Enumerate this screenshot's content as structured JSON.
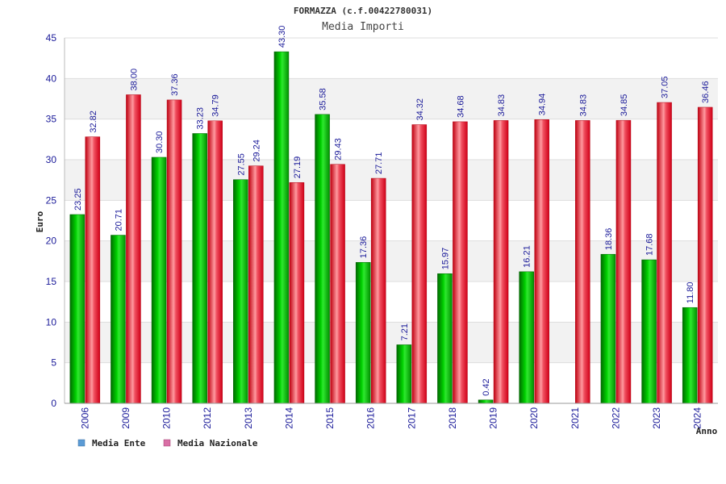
{
  "chart_data": {
    "type": "bar",
    "title": "FORMAZZA (c.f.00422780031)",
    "subtitle": "Media Importi",
    "ylabel": "Euro",
    "xlabel": "Anno",
    "ylim": [
      0,
      45
    ],
    "yticks": [
      "0",
      "5",
      "10",
      "15",
      "20",
      "25",
      "30",
      "35",
      "40",
      "45"
    ],
    "categories": [
      "2006",
      "2009",
      "2010",
      "2012",
      "2013",
      "2014",
      "2015",
      "2016",
      "2017",
      "2018",
      "2019",
      "2020",
      "2021",
      "2022",
      "2023",
      "2024"
    ],
    "series": [
      {
        "name": "Media Ente",
        "color": "#00b000",
        "values": [
          23.25,
          20.71,
          30.3,
          33.23,
          27.55,
          43.3,
          35.58,
          17.36,
          7.21,
          15.97,
          0.42,
          16.21,
          null,
          18.36,
          17.68,
          11.8
        ],
        "labels": [
          "23.25",
          "20.71",
          "30.30",
          "33.23",
          "27.55",
          "43.30",
          "35.58",
          "17.36",
          "7.21",
          "15.97",
          "0.42",
          "16.21",
          "",
          "18.36",
          "17.68",
          "11.80"
        ]
      },
      {
        "name": "Media Nazionale",
        "color": "#e8202a",
        "values": [
          32.82,
          38.0,
          37.36,
          34.79,
          29.24,
          27.19,
          29.43,
          27.71,
          34.32,
          34.68,
          34.83,
          34.94,
          34.83,
          34.85,
          37.05,
          36.46
        ],
        "labels": [
          "32.82",
          "38.00",
          "37.36",
          "34.79",
          "29.24",
          "27.19",
          "29.43",
          "27.71",
          "34.32",
          "34.68",
          "34.83",
          "34.94",
          "34.83",
          "34.85",
          "37.05",
          "36.46"
        ]
      }
    ],
    "grid": true,
    "legend": {
      "placement": "bottom-left",
      "items": [
        {
          "label": "Media Ente",
          "swatch": "#5b9bd5"
        },
        {
          "label": "Media Nazionale",
          "swatch": "#d96fa5"
        }
      ]
    }
  }
}
